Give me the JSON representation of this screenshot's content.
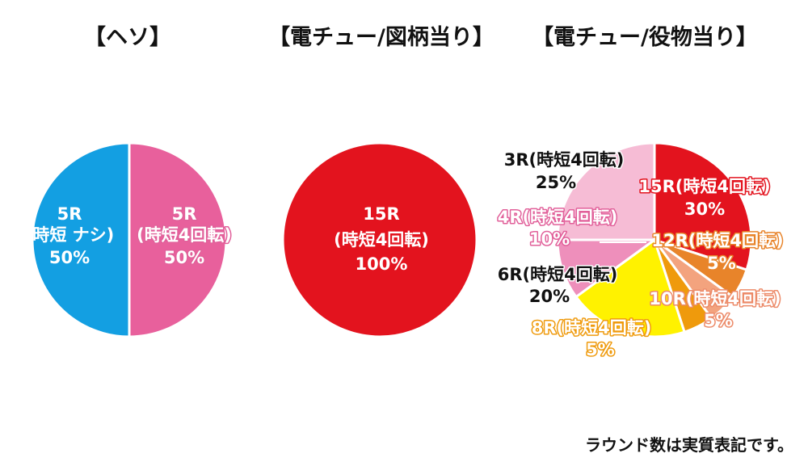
{
  "page": {
    "note": "ラウンド数は実質表記です。"
  },
  "chart_data": [
    {
      "type": "pie",
      "title": "【ヘソ】",
      "slices": [
        {
          "label": "5R",
          "sub": "(時短 ナシ)",
          "value": 50,
          "pct": "50%",
          "color": "#139fe2"
        },
        {
          "label": "5R",
          "sub": "(時短4回転)",
          "value": 50,
          "pct": "50%",
          "color": "#e8609c"
        }
      ]
    },
    {
      "type": "pie",
      "title": "【電チュー/図柄当り】",
      "slices": [
        {
          "label": "15R",
          "sub": "(時短4回転)",
          "value": 100,
          "pct": "100%",
          "color": "#e3131e"
        }
      ]
    },
    {
      "type": "pie",
      "title": "【電チュー/役物当り】",
      "slices": [
        {
          "label": "15R(時短4回転)",
          "value": 30,
          "pct": "30%",
          "color": "#e3131e"
        },
        {
          "label": "12R(時短4回転)",
          "value": 5,
          "pct": "5%",
          "color": "#e8842a"
        },
        {
          "label": "10R(時短4回転)",
          "value": 5,
          "pct": "5%",
          "color": "#f3a37e"
        },
        {
          "label": "8R(時短4回転)",
          "value": 5,
          "pct": "5%",
          "color": "#ef9a0c"
        },
        {
          "label": "6R(時短4回転)",
          "value": 20,
          "pct": "20%",
          "color": "#fff200"
        },
        {
          "label": "4R(時短4回転)",
          "value": 10,
          "pct": "10%",
          "color": "#ee8fbb"
        },
        {
          "label": "3R(時短4回転)",
          "value": 25,
          "pct": "25%",
          "color": "#f6bcd5"
        }
      ]
    }
  ]
}
